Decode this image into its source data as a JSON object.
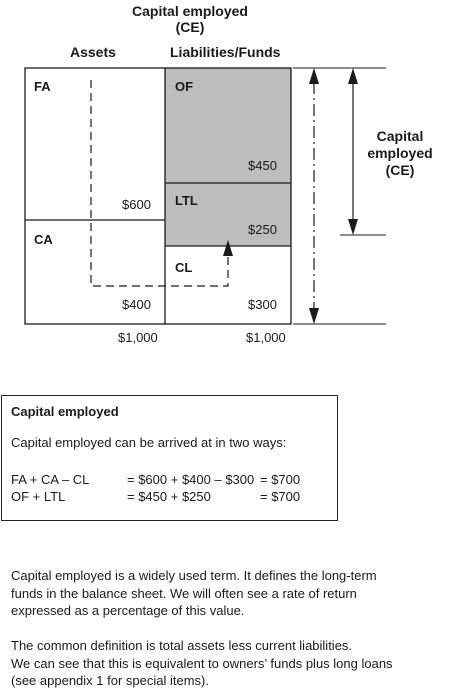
{
  "diagram": {
    "title_line1": "Capital employed",
    "title_line2": "(CE)",
    "header_assets": "Assets",
    "header_liabilities": "Liabilities/Funds",
    "fa_label": "FA",
    "fa_value": "$600",
    "ca_label": "CA",
    "ca_value": "$400",
    "of_label": "OF",
    "of_value": "$450",
    "ltl_label": "LTL",
    "ltl_value": "$250",
    "cl_label": "CL",
    "cl_value": "$300",
    "total_assets": "$1,000",
    "total_liabilities": "$1,000",
    "ce_side_line1": "Capital",
    "ce_side_line2": "employed",
    "ce_side_line3": "(CE)",
    "shaded_color": "#bdbdbd"
  },
  "box": {
    "title": "Capital employed",
    "intro": "Capital employed can be arrived at in two ways:",
    "rows": [
      {
        "lhs": "FA + CA – CL",
        "mid": "= $600 + $400 – $300",
        "rhs": "= $700"
      },
      {
        "lhs": "OF + LTL",
        "mid": "= $450 + $250",
        "rhs": "= $700"
      }
    ]
  },
  "text": {
    "para1": [
      "Capital employed is a widely used term. It defines the long-term",
      "funds in the balance sheet. We will often see a rate of return",
      "expressed as a percentage of this value."
    ],
    "para2": [
      "The common definition is total assets less current liabilities.",
      "We can see that this is equivalent to owners’ funds plus long loans",
      "(see appendix 1 for special items)."
    ]
  }
}
